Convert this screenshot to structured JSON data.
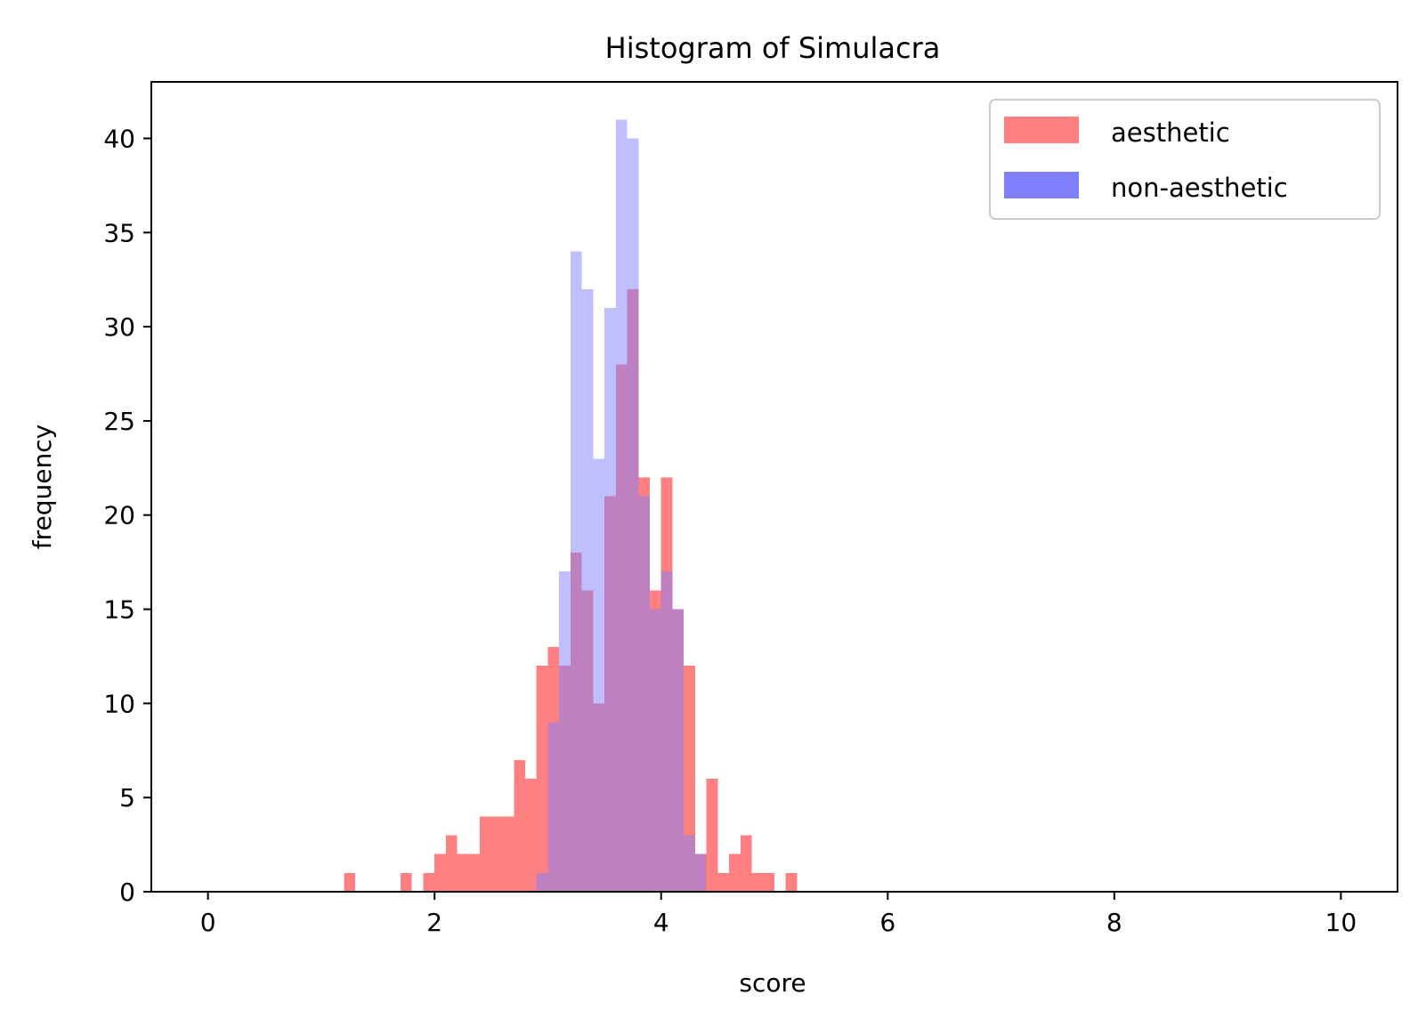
{
  "chart_data": {
    "type": "bar",
    "title": "Histogram of Simulacra",
    "xlabel": "score",
    "ylabel": "frequency",
    "xlim": [
      -0.5,
      10.5
    ],
    "ylim": [
      0,
      43
    ],
    "xticks": [
      0,
      2,
      4,
      6,
      8,
      10
    ],
    "yticks": [
      0,
      5,
      10,
      15,
      20,
      25,
      30,
      35,
      40
    ],
    "bin_width": 0.1,
    "grid": false,
    "legend_position": "top-right",
    "series": [
      {
        "name": "aesthetic",
        "color": "#ff8080",
        "bins": [
          [
            1.2,
            1
          ],
          [
            1.7,
            1
          ],
          [
            1.9,
            1
          ],
          [
            2.0,
            2
          ],
          [
            2.1,
            3
          ],
          [
            2.2,
            2
          ],
          [
            2.3,
            2
          ],
          [
            2.4,
            4
          ],
          [
            2.5,
            4
          ],
          [
            2.6,
            4
          ],
          [
            2.7,
            7
          ],
          [
            2.8,
            6
          ],
          [
            2.9,
            12
          ],
          [
            3.0,
            13
          ],
          [
            3.1,
            12
          ],
          [
            3.2,
            18
          ],
          [
            3.3,
            16
          ],
          [
            3.4,
            10
          ],
          [
            3.5,
            21
          ],
          [
            3.6,
            28
          ],
          [
            3.7,
            32
          ],
          [
            3.8,
            22
          ],
          [
            3.9,
            16
          ],
          [
            4.0,
            22
          ],
          [
            4.1,
            15
          ],
          [
            4.2,
            12
          ],
          [
            4.3,
            2
          ],
          [
            4.4,
            6
          ],
          [
            4.5,
            1
          ],
          [
            4.6,
            2
          ],
          [
            4.7,
            3
          ],
          [
            4.8,
            1
          ],
          [
            4.9,
            1
          ],
          [
            5.1,
            1
          ]
        ]
      },
      {
        "name": "non-aesthetic",
        "color": "#8080ff",
        "bins": [
          [
            2.9,
            1
          ],
          [
            3.0,
            9
          ],
          [
            3.1,
            17
          ],
          [
            3.2,
            34
          ],
          [
            3.3,
            32
          ],
          [
            3.4,
            23
          ],
          [
            3.5,
            31
          ],
          [
            3.6,
            41
          ],
          [
            3.7,
            40
          ],
          [
            3.8,
            21
          ],
          [
            3.9,
            15
          ],
          [
            4.0,
            17
          ],
          [
            4.1,
            15
          ],
          [
            4.2,
            3
          ],
          [
            4.3,
            2
          ]
        ]
      }
    ]
  }
}
